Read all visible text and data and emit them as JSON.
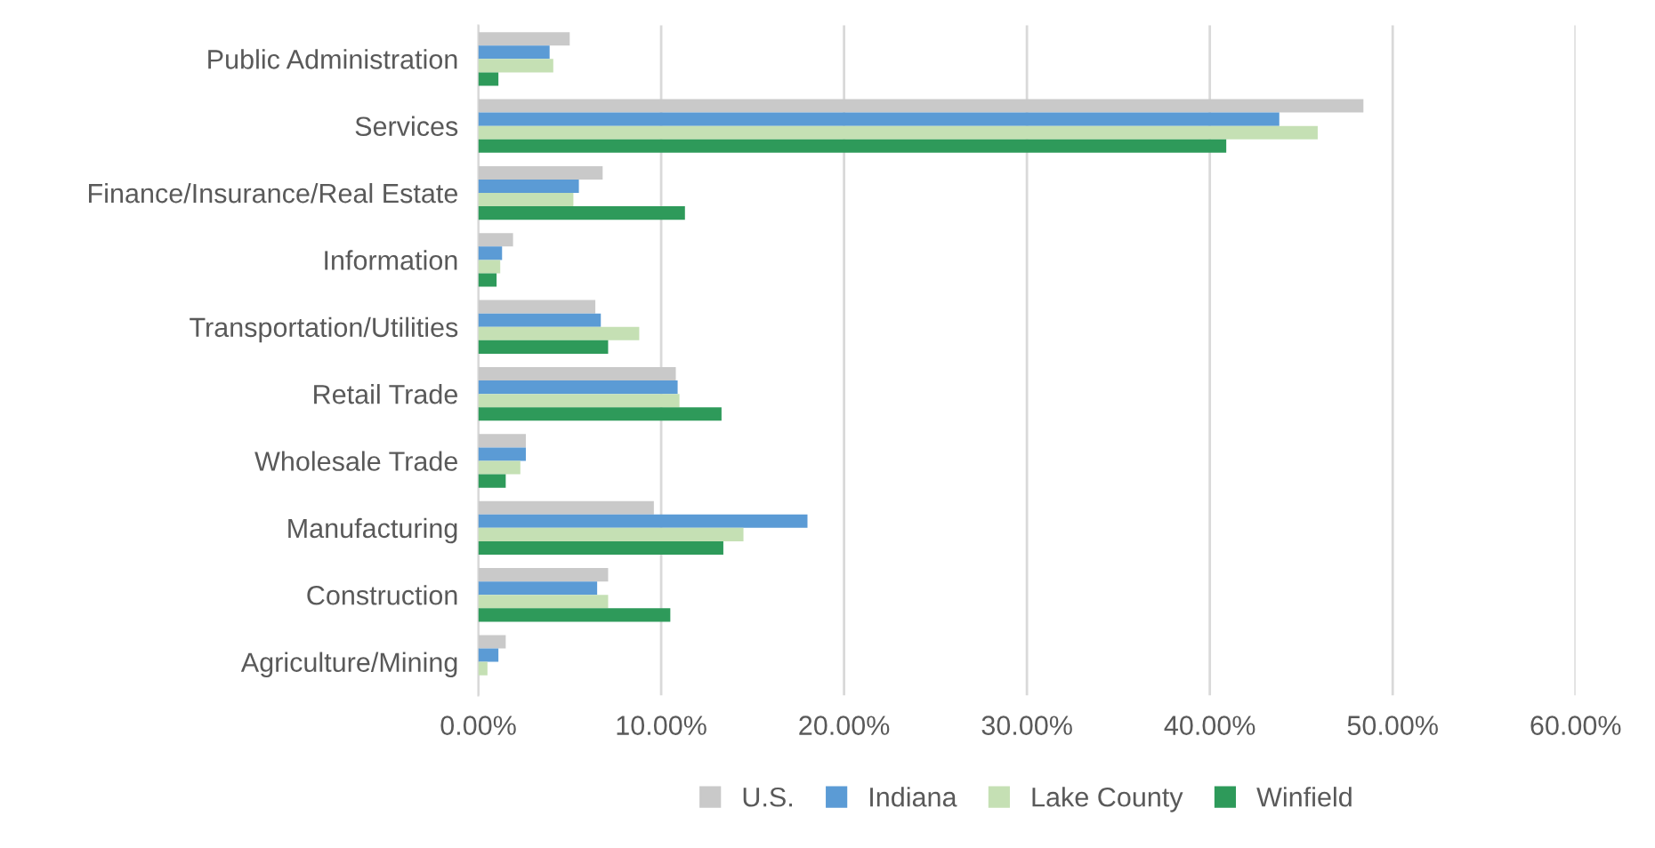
{
  "chart_data": {
    "type": "bar",
    "orientation": "horizontal",
    "categories": [
      "Public Administration",
      "Services",
      "Finance/Insurance/Real Estate",
      "Information",
      "Transportation/Utilities",
      "Retail Trade",
      "Wholesale Trade",
      "Manufacturing",
      "Construction",
      "Agriculture/Mining"
    ],
    "series": [
      {
        "name": "U.S.",
        "color": "#c9c9c9",
        "values": [
          5.0,
          48.4,
          6.8,
          1.9,
          6.4,
          10.8,
          2.6,
          9.6,
          7.1,
          1.5
        ]
      },
      {
        "name": "Indiana",
        "color": "#5b9bd5",
        "values": [
          3.9,
          43.8,
          5.5,
          1.3,
          6.7,
          10.9,
          2.6,
          18.0,
          6.5,
          1.1
        ]
      },
      {
        "name": "Lake County",
        "color": "#c5e0b4",
        "values": [
          4.1,
          45.9,
          5.2,
          1.2,
          8.8,
          11.0,
          2.3,
          14.5,
          7.1,
          0.5
        ]
      },
      {
        "name": "Winfield",
        "color": "#2e9a5a",
        "values": [
          1.1,
          40.9,
          11.3,
          1.0,
          7.1,
          13.3,
          1.5,
          13.4,
          10.5,
          0.0
        ]
      }
    ],
    "xlim": [
      0,
      60
    ],
    "xticks": [
      {
        "value": 0,
        "label": "0.00%"
      },
      {
        "value": 10,
        "label": "10.00%"
      },
      {
        "value": 20,
        "label": "20.00%"
      },
      {
        "value": 30,
        "label": "30.00%"
      },
      {
        "value": 40,
        "label": "40.00%"
      },
      {
        "value": 50,
        "label": "50.00%"
      },
      {
        "value": 60,
        "label": "60.00%"
      }
    ],
    "grid": "x",
    "legend": "bottom"
  }
}
